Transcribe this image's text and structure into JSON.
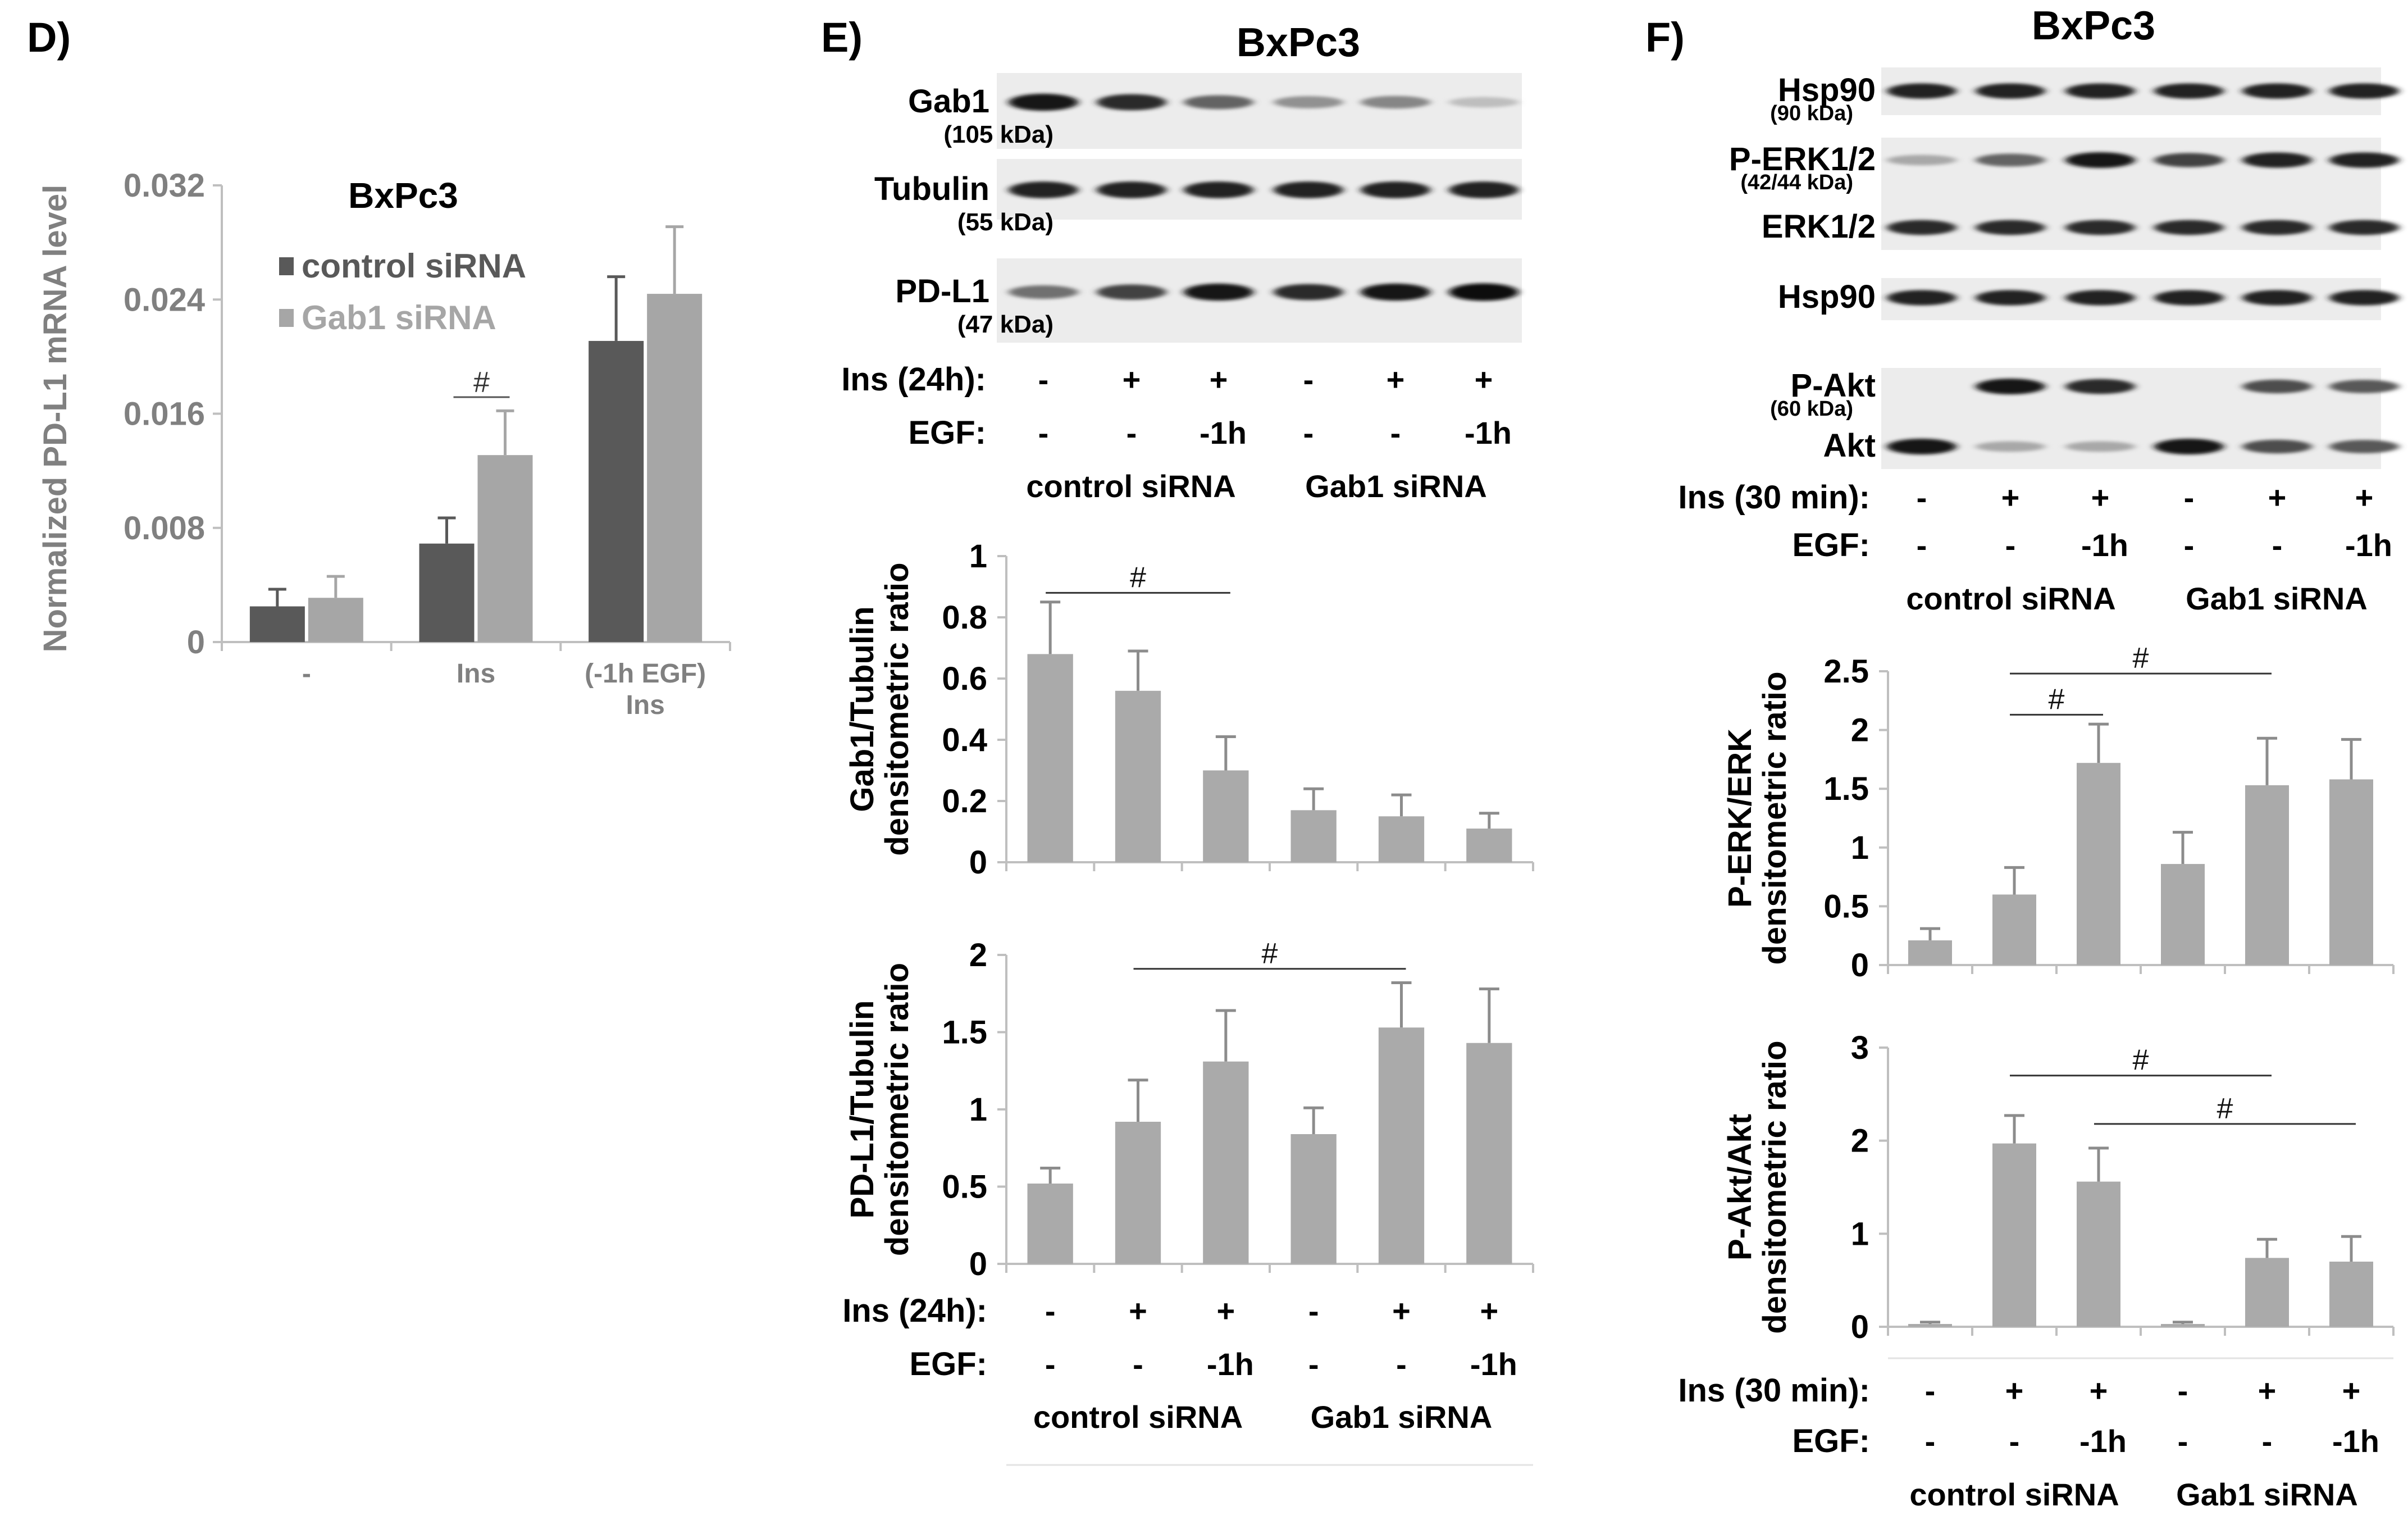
{
  "panel_labels": {
    "D": "D)",
    "E": "E)",
    "F": "F)"
  },
  "colors": {
    "dark_bar": "#595959",
    "light_bar": "#a6a6a6",
    "grey_bar": "#aaaaaa",
    "axis": "#bfbfbf",
    "blot_band": "#111111"
  },
  "blot_E": {
    "title": "BxPc3",
    "rows": [
      {
        "label": "Gab1",
        "sublabel": "(105 kDa)",
        "intensities": [
          0.95,
          0.85,
          0.6,
          0.4,
          0.45,
          0.2
        ]
      },
      {
        "label": "Tubulin",
        "sublabel": "(55 kDa)",
        "intensities": [
          0.9,
          0.9,
          0.9,
          0.9,
          0.9,
          0.9
        ]
      },
      {
        "label": "PD-L1",
        "sublabel": "(47 kDa)",
        "intensities": [
          0.55,
          0.75,
          0.95,
          0.85,
          0.95,
          1.0
        ]
      }
    ],
    "ins_label": "Ins (24h):",
    "ins_values": [
      "-",
      "+",
      "+",
      "-",
      "+",
      "+"
    ],
    "egf_label": "EGF:",
    "egf_values": [
      "-",
      "-",
      "-1h",
      "-",
      "-",
      "-1h"
    ],
    "group_labels": [
      "control siRNA",
      "Gab1 siRNA"
    ]
  },
  "blot_F": {
    "title": "BxPc3",
    "rows": [
      {
        "label": "Hsp90",
        "sublabel": "(90 kDa)",
        "intensities": [
          0.9,
          0.9,
          0.9,
          0.9,
          0.9,
          0.9
        ]
      },
      {
        "label": "P-ERK1/2",
        "sublabel": "(42/44 kDa)",
        "intensities": [
          0.3,
          0.6,
          0.95,
          0.75,
          0.9,
          0.9
        ]
      },
      {
        "label": "ERK1/2",
        "sublabel": "",
        "intensities": [
          0.85,
          0.85,
          0.85,
          0.85,
          0.85,
          0.85
        ]
      },
      {
        "label": "Hsp90",
        "sublabel": "",
        "intensities": [
          0.9,
          0.9,
          0.9,
          0.9,
          0.9,
          0.9
        ]
      },
      {
        "label": "P-Akt",
        "sublabel": "(60 kDa)",
        "intensities": [
          0.0,
          0.95,
          0.85,
          0.0,
          0.7,
          0.65
        ]
      },
      {
        "label": "Akt",
        "sublabel": "",
        "intensities": [
          0.95,
          0.3,
          0.3,
          0.95,
          0.7,
          0.65
        ]
      }
    ],
    "ins_label": "Ins (30 min):",
    "ins_values": [
      "-",
      "+",
      "+",
      "-",
      "+",
      "+"
    ],
    "egf_label": "EGF:",
    "egf_values": [
      "-",
      "-",
      "-1h",
      "-",
      "-",
      "-1h"
    ],
    "group_labels": [
      "control siRNA",
      "Gab1 siRNA"
    ]
  },
  "chart_data": [
    {
      "id": "D",
      "type": "bar",
      "title": "BxPc3",
      "ylabel": "Normalized PD-L1 mRNA level",
      "xlabel": "",
      "categories": [
        [
          "-"
        ],
        [
          "Ins"
        ],
        [
          "(-1h EGF)",
          "Ins"
        ]
      ],
      "ylim": [
        0,
        0.032
      ],
      "yticks": [
        0,
        0.008,
        0.016,
        0.024,
        0.032
      ],
      "ytick_labels": [
        "0",
        "0.008",
        "0.016",
        "0.024",
        "0.032"
      ],
      "series": [
        {
          "name": "control siRNA",
          "color": "#595959",
          "values": [
            0.0025,
            0.0069,
            0.0211
          ],
          "errors": [
            0.0012,
            0.0018,
            0.0045
          ]
        },
        {
          "name": "Gab1 siRNA",
          "color": "#a6a6a6",
          "values": [
            0.0031,
            0.0131,
            0.0244
          ],
          "errors": [
            0.0015,
            0.0031,
            0.0047
          ]
        }
      ],
      "legend": "top-left",
      "annotations": [
        {
          "text": "#",
          "category": 1
        }
      ]
    },
    {
      "id": "E1",
      "type": "bar",
      "ylabel_lines": [
        "Gab1/Tubulin",
        "densitometric ratio"
      ],
      "ylim": [
        0,
        1
      ],
      "yticks": [
        0,
        0.2,
        0.4,
        0.6,
        0.8,
        1
      ],
      "ytick_labels": [
        "0",
        "0.2",
        "0.4",
        "0.6",
        "0.8",
        "1"
      ],
      "values": [
        0.68,
        0.56,
        0.3,
        0.17,
        0.15,
        0.11
      ],
      "errors": [
        0.17,
        0.13,
        0.11,
        0.07,
        0.07,
        0.05
      ],
      "brackets": [
        {
          "from": 0,
          "to": 2,
          "text": "#",
          "y": 0.88
        }
      ]
    },
    {
      "id": "E2",
      "type": "bar",
      "ylabel_lines": [
        "PD-L1/Tubulin",
        "densitometric ratio"
      ],
      "ylim": [
        0,
        2
      ],
      "yticks": [
        0,
        0.5,
        1,
        1.5,
        2
      ],
      "ytick_labels": [
        "0",
        "0.5",
        "1",
        "1.5",
        "2"
      ],
      "values": [
        0.52,
        0.92,
        1.31,
        0.84,
        1.53,
        1.43
      ],
      "errors": [
        0.1,
        0.27,
        0.33,
        0.17,
        0.29,
        0.35
      ],
      "brackets": [
        {
          "from": 1,
          "to": 4,
          "text": "#",
          "y": 1.91
        }
      ],
      "ins_label": "Ins (24h):",
      "ins_values": [
        "-",
        "+",
        "+",
        "-",
        "+",
        "+"
      ],
      "egf_label": "EGF:",
      "egf_values": [
        "-",
        "-",
        "-1h",
        "-",
        "-",
        "-1h"
      ],
      "group_labels": [
        "control siRNA",
        "Gab1 siRNA"
      ]
    },
    {
      "id": "F1",
      "type": "bar",
      "ylabel_lines": [
        "P-ERK/ERK",
        "densitometric ratio"
      ],
      "ylim": [
        0,
        2.5
      ],
      "yticks": [
        0,
        0.5,
        1,
        1.5,
        2,
        2.5
      ],
      "ytick_labels": [
        "0",
        "0.5",
        "1",
        "1.5",
        "2",
        "2.5"
      ],
      "values": [
        0.21,
        0.6,
        1.72,
        0.86,
        1.53,
        1.58
      ],
      "errors": [
        0.1,
        0.23,
        0.33,
        0.27,
        0.4,
        0.34
      ],
      "brackets": [
        {
          "from": 1,
          "to": 2,
          "text": "#",
          "y": 2.13
        },
        {
          "from": 1,
          "to": 4,
          "text": "#",
          "y": 2.48
        }
      ]
    },
    {
      "id": "F2",
      "type": "bar",
      "ylabel_lines": [
        "P-Akt/Akt",
        "densitometric ratio"
      ],
      "ylim": [
        0,
        3
      ],
      "yticks": [
        0,
        1,
        2,
        3
      ],
      "ytick_labels": [
        "0",
        "1",
        "2",
        "3"
      ],
      "values": [
        0.03,
        1.97,
        1.56,
        0.03,
        0.74,
        0.7
      ],
      "errors": [
        0.02,
        0.3,
        0.36,
        0.02,
        0.2,
        0.27
      ],
      "brackets": [
        {
          "from": 1,
          "to": 4,
          "text": "#",
          "y": 2.7
        },
        {
          "from": 2,
          "to": 5,
          "text": "#",
          "y": 2.18
        }
      ],
      "ins_label": "Ins (30 min):",
      "ins_values": [
        "-",
        "+",
        "+",
        "-",
        "+",
        "+"
      ],
      "egf_label": "EGF:",
      "egf_values": [
        "-",
        "-",
        "-1h",
        "-",
        "-",
        "-1h"
      ],
      "group_labels": [
        "control siRNA",
        "Gab1 siRNA"
      ]
    }
  ]
}
